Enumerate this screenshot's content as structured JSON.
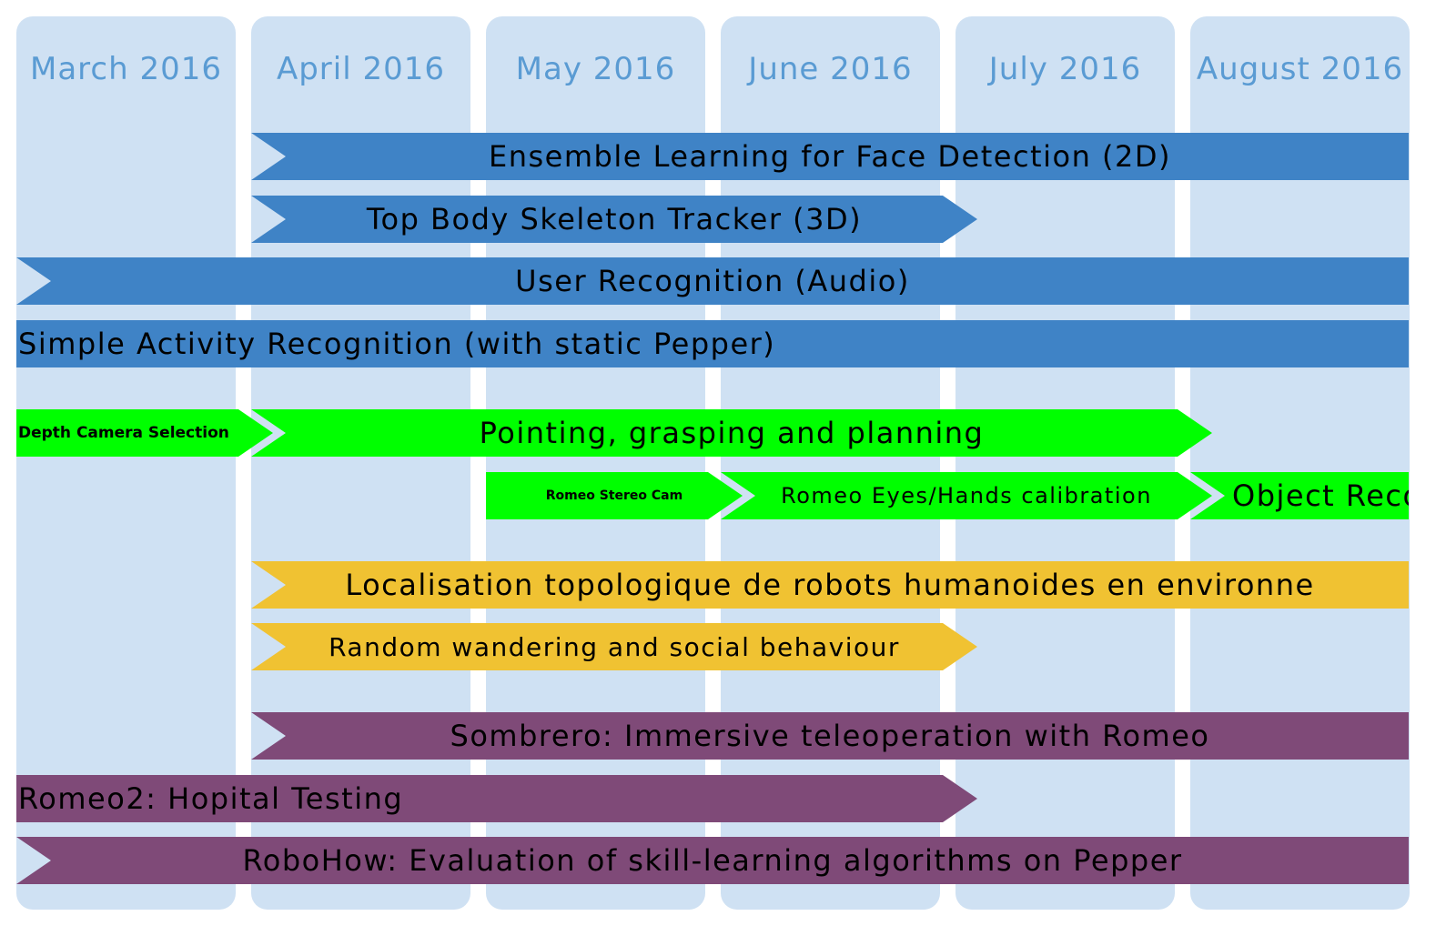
{
  "months": [
    {
      "label": "March 2016"
    },
    {
      "label": "April 2016"
    },
    {
      "label": "May 2016"
    },
    {
      "label": "June 2016"
    },
    {
      "label": "July 2016"
    },
    {
      "label": "August 2016"
    }
  ],
  "colors": {
    "column": "#cfe1f3",
    "month_text": "#5a9bd3",
    "blue": "#3f83c6",
    "green": "#00ff00",
    "yellow": "#f0c232",
    "purple": "#7f4a78"
  },
  "tasks": [
    {
      "label": "Ensemble Learning for Face Detection (2D)",
      "color": "#3f83c6",
      "start_month": 1,
      "end_month": 6,
      "row": 0
    },
    {
      "label": "Top Body Skeleton Tracker (3D)",
      "color": "#3f83c6",
      "start_month": 1,
      "end_month": 4,
      "row": 1
    },
    {
      "label": "User Recognition (Audio)",
      "color": "#3f83c6",
      "start_month": 0,
      "end_month": 6,
      "row": 2
    },
    {
      "label": "Simple Activity Recognition (with static Pepper)",
      "color": "#3f83c6",
      "start_month": 0,
      "end_month": 6,
      "row": 3
    },
    {
      "label": "Depth Camera Selection",
      "color": "#00ff00",
      "start_month": 0,
      "end_month": 1,
      "row": 4
    },
    {
      "label": "Pointing, grasping and planning",
      "color": "#00ff00",
      "start_month": 1,
      "end_month": 5,
      "row": 4
    },
    {
      "label": "Romeo Stereo Cam",
      "color": "#00ff00",
      "start_month": 2,
      "end_month": 3,
      "row": 5
    },
    {
      "label": "Romeo Eyes/Hands calibration",
      "color": "#00ff00",
      "start_month": 3,
      "end_month": 5,
      "row": 5
    },
    {
      "label": "Object Reco",
      "color": "#00ff00",
      "start_month": 5,
      "end_month": 6,
      "row": 5
    },
    {
      "label": "Localisation topologique de robots humanoides en environne",
      "color": "#f0c232",
      "start_month": 1,
      "end_month": 6,
      "row": 6
    },
    {
      "label": "Random wandering and social behaviour",
      "color": "#f0c232",
      "start_month": 1,
      "end_month": 4,
      "row": 7
    },
    {
      "label": "Sombrero: Immersive teleoperation with Romeo",
      "color": "#7f4a78",
      "start_month": 1,
      "end_month": 6,
      "row": 8
    },
    {
      "label": "Romeo2: Hopital Testing",
      "color": "#7f4a78",
      "start_month": 0,
      "end_month": 4,
      "row": 9
    },
    {
      "label": "RoboHow: Evaluation of skill-learning algorithms on Pepper",
      "color": "#7f4a78",
      "start_month": 0,
      "end_month": 6,
      "row": 10
    }
  ]
}
